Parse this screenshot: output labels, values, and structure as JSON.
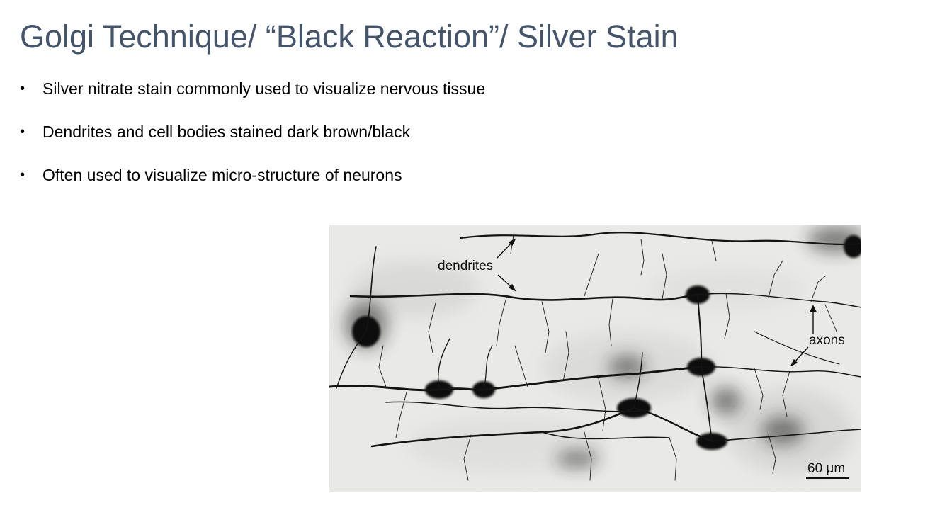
{
  "slide": {
    "title": "Golgi Technique/ “Black Reaction”/ Silver Stain",
    "bullets": [
      "Silver nitrate stain commonly used to visualize nervous tissue",
      "Dendrites and cell bodies stained dark brown/black",
      "Often used to visualize micro-structure of neurons"
    ]
  },
  "figure": {
    "labels": {
      "dendrites": "dendrites",
      "axons": "axons",
      "scale_bar": "60 μm"
    }
  },
  "colors": {
    "title": "#44546a",
    "body_text": "#000000",
    "stain": "#111111",
    "tissue_background": "#e7e7e5"
  }
}
